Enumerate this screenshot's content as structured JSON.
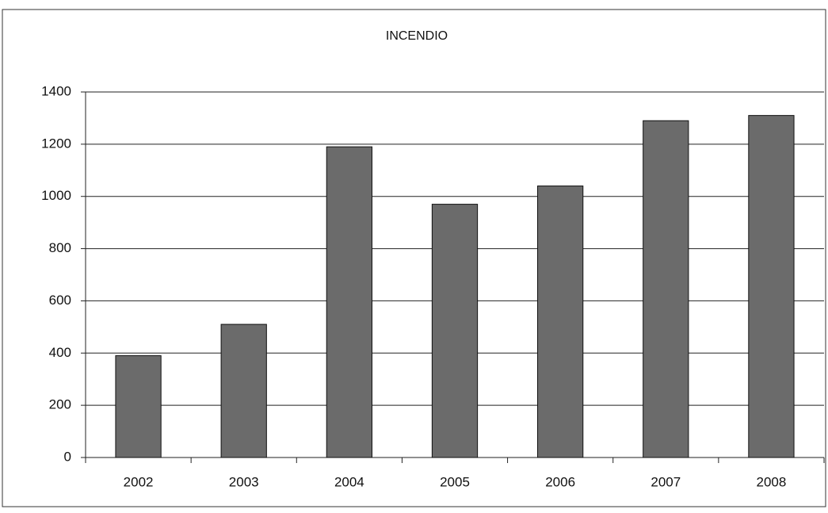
{
  "chart_data": {
    "type": "bar",
    "title": "INCENDIO",
    "categories": [
      "2002",
      "2003",
      "2004",
      "2005",
      "2006",
      "2007",
      "2008"
    ],
    "values": [
      390,
      510,
      1190,
      970,
      1040,
      1290,
      1310
    ],
    "color": "#6b6b6b",
    "ylim": [
      0,
      1400
    ],
    "yticks": [
      0,
      200,
      400,
      600,
      800,
      1000,
      1200,
      1400
    ],
    "grid": true
  }
}
